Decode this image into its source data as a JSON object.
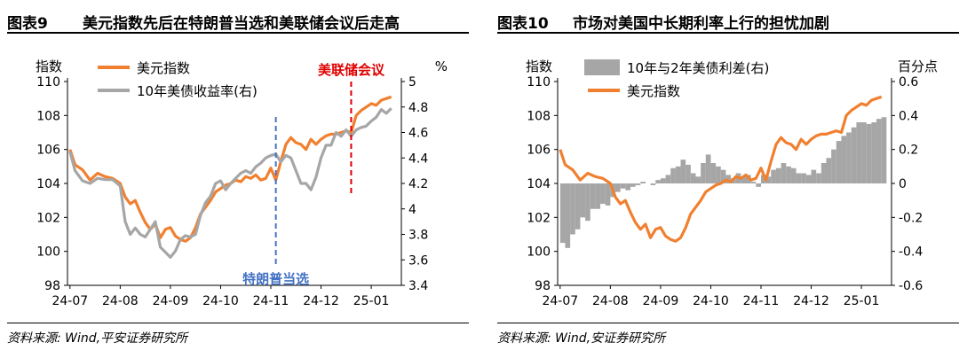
{
  "figures": [
    {
      "number": "图表9",
      "title": "美元指数先后在特朗普当选和美联储会议后走高",
      "source": "资料来源: Wind,平安证券研究所"
    },
    {
      "number": "图表10",
      "title": "市场对美国中长期利率上行的担忧加剧",
      "source": "资料来源: Wind,安证券研究所"
    }
  ],
  "chart_data": [
    {
      "type": "line",
      "x_ticks": [
        "24-07",
        "24-08",
        "24-09",
        "24-10",
        "24-11",
        "24-12",
        "25-01"
      ],
      "y_left": {
        "label": "指数",
        "lim": [
          98,
          110
        ],
        "ticks": [
          98,
          100,
          102,
          104,
          106,
          108,
          110
        ]
      },
      "y_right": {
        "label": "%",
        "lim": [
          3.4,
          5.0
        ],
        "ticks": [
          3.4,
          3.6,
          3.8,
          4.0,
          4.2,
          4.4,
          4.6,
          4.8,
          5.0
        ]
      },
      "legend": [
        "美元指数",
        "10年美债收益率(右)"
      ],
      "legend_position": "top-left",
      "colors": {
        "series1": "#F08030",
        "series2": "#A6A6A6",
        "annotation1": "#4472C4",
        "annotation2": "#E00000"
      },
      "annotations": [
        {
          "label": "特朗普当选",
          "x": 4.1,
          "style": "dashed-vertical",
          "color": "#4472C4"
        },
        {
          "label": "美联储会议",
          "x": 5.6,
          "style": "dashed-vertical",
          "color": "#E00000"
        }
      ],
      "series": [
        {
          "name": "美元指数",
          "axis": "left",
          "x": [
            0,
            0.1,
            0.25,
            0.4,
            0.55,
            0.7,
            0.85,
            1.0,
            1.1,
            1.2,
            1.3,
            1.4,
            1.5,
            1.6,
            1.7,
            1.8,
            1.9,
            2.0,
            2.1,
            2.2,
            2.3,
            2.4,
            2.5,
            2.6,
            2.7,
            2.8,
            2.9,
            3.0,
            3.1,
            3.2,
            3.3,
            3.4,
            3.5,
            3.6,
            3.7,
            3.8,
            3.9,
            4.0,
            4.1,
            4.2,
            4.3,
            4.4,
            4.5,
            4.6,
            4.7,
            4.8,
            4.9,
            5.0,
            5.1,
            5.2,
            5.3,
            5.4,
            5.5,
            5.6,
            5.7,
            5.8,
            5.9,
            6.0,
            6.1,
            6.2,
            6.3,
            6.4
          ],
          "values": [
            106.0,
            105.1,
            104.8,
            104.2,
            104.6,
            104.4,
            104.3,
            104.0,
            103.2,
            102.8,
            103.0,
            102.3,
            101.7,
            101.3,
            101.6,
            100.8,
            101.3,
            101.4,
            100.9,
            100.7,
            100.6,
            100.8,
            101.4,
            102.2,
            102.6,
            103.0,
            103.5,
            103.7,
            103.9,
            104.0,
            104.2,
            104.1,
            104.4,
            104.3,
            104.5,
            104.2,
            104.3,
            104.9,
            104.2,
            105.3,
            106.3,
            106.7,
            106.4,
            106.3,
            106.0,
            106.6,
            106.3,
            106.6,
            106.8,
            106.9,
            106.9,
            107.0,
            107.1,
            107.0,
            108.0,
            108.3,
            108.5,
            108.7,
            108.6,
            108.9,
            109.0,
            109.1
          ]
        },
        {
          "name": "10年美债收益率(右)",
          "axis": "right",
          "x": [
            0,
            0.1,
            0.25,
            0.4,
            0.55,
            0.7,
            0.85,
            1.0,
            1.1,
            1.2,
            1.3,
            1.4,
            1.5,
            1.6,
            1.7,
            1.8,
            1.9,
            2.0,
            2.1,
            2.2,
            2.3,
            2.4,
            2.5,
            2.6,
            2.7,
            2.8,
            2.9,
            3.0,
            3.1,
            3.2,
            3.3,
            3.4,
            3.5,
            3.6,
            3.7,
            3.8,
            3.9,
            4.0,
            4.1,
            4.2,
            4.3,
            4.4,
            4.5,
            4.6,
            4.7,
            4.8,
            4.9,
            5.0,
            5.1,
            5.2,
            5.3,
            5.4,
            5.5,
            5.6,
            5.7,
            5.8,
            5.9,
            6.0,
            6.1,
            6.2,
            6.3,
            6.4
          ],
          "values": [
            4.45,
            4.3,
            4.22,
            4.2,
            4.24,
            4.23,
            4.23,
            4.18,
            3.9,
            3.8,
            3.85,
            3.8,
            3.78,
            3.84,
            3.9,
            3.7,
            3.66,
            3.62,
            3.67,
            3.76,
            3.79,
            3.78,
            3.8,
            3.95,
            4.05,
            4.1,
            4.2,
            4.22,
            4.15,
            4.2,
            4.24,
            4.28,
            4.3,
            4.28,
            4.33,
            4.36,
            4.4,
            4.42,
            4.43,
            4.37,
            4.42,
            4.4,
            4.3,
            4.2,
            4.2,
            4.15,
            4.25,
            4.4,
            4.5,
            4.5,
            4.6,
            4.57,
            4.62,
            4.57,
            4.62,
            4.64,
            4.65,
            4.69,
            4.72,
            4.78,
            4.75,
            4.79
          ]
        }
      ]
    },
    {
      "type": "area",
      "x_ticks": [
        "24-07",
        "24-08",
        "24-09",
        "24-10",
        "24-11",
        "24-12",
        "25-01"
      ],
      "y_left": {
        "label": "指数",
        "lim": [
          98,
          110
        ],
        "ticks": [
          98,
          100,
          102,
          104,
          106,
          108,
          110
        ]
      },
      "y_right": {
        "label": "百分点",
        "lim": [
          -0.6,
          0.6
        ],
        "ticks": [
          -0.6,
          -0.4,
          -0.2,
          0.0,
          0.2,
          0.4,
          0.6
        ]
      },
      "legend": [
        "10年与2年美债利差(右)",
        "美元指数"
      ],
      "legend_position": "top-left",
      "colors": {
        "series1": "#A6A6A6",
        "series2": "#F08030"
      },
      "series": [
        {
          "name": "10年与2年美债利差(右)",
          "axis": "right",
          "type": "area",
          "x": [
            0,
            0.1,
            0.2,
            0.3,
            0.4,
            0.5,
            0.6,
            0.7,
            0.8,
            0.9,
            1.0,
            1.1,
            1.2,
            1.3,
            1.4,
            1.5,
            1.6,
            1.7,
            1.8,
            1.9,
            2.0,
            2.1,
            2.2,
            2.3,
            2.4,
            2.5,
            2.6,
            2.7,
            2.8,
            2.9,
            3.0,
            3.1,
            3.2,
            3.3,
            3.4,
            3.5,
            3.6,
            3.7,
            3.8,
            3.9,
            4.0,
            4.1,
            4.2,
            4.3,
            4.4,
            4.5,
            4.6,
            4.7,
            4.8,
            4.9,
            5.0,
            5.1,
            5.2,
            5.3,
            5.4,
            5.5,
            5.6,
            5.7,
            5.8,
            5.9,
            6.0,
            6.1,
            6.2,
            6.3,
            6.4
          ],
          "values": [
            -0.35,
            -0.38,
            -0.3,
            -0.27,
            -0.2,
            -0.22,
            -0.15,
            -0.15,
            -0.12,
            -0.13,
            -0.08,
            -0.05,
            -0.03,
            -0.04,
            -0.02,
            -0.01,
            0.01,
            0.0,
            -0.01,
            0.02,
            0.03,
            0.05,
            0.09,
            0.1,
            0.14,
            0.11,
            0.06,
            0.04,
            0.12,
            0.17,
            0.12,
            0.1,
            0.08,
            0.05,
            0.03,
            0.06,
            0.04,
            0.05,
            0.01,
            -0.02,
            0.05,
            0.04,
            0.08,
            0.09,
            0.12,
            0.1,
            0.09,
            0.06,
            0.06,
            0.05,
            0.08,
            0.06,
            0.12,
            0.15,
            0.2,
            0.25,
            0.28,
            0.3,
            0.33,
            0.36,
            0.36,
            0.35,
            0.36,
            0.38,
            0.39
          ]
        },
        {
          "name": "美元指数",
          "axis": "left",
          "type": "line",
          "x": [
            0,
            0.1,
            0.25,
            0.4,
            0.55,
            0.7,
            0.85,
            1.0,
            1.1,
            1.2,
            1.3,
            1.4,
            1.5,
            1.6,
            1.7,
            1.8,
            1.9,
            2.0,
            2.1,
            2.2,
            2.3,
            2.4,
            2.5,
            2.6,
            2.7,
            2.8,
            2.9,
            3.0,
            3.1,
            3.2,
            3.3,
            3.4,
            3.5,
            3.6,
            3.7,
            3.8,
            3.9,
            4.0,
            4.1,
            4.2,
            4.3,
            4.4,
            4.5,
            4.6,
            4.7,
            4.8,
            4.9,
            5.0,
            5.1,
            5.2,
            5.3,
            5.4,
            5.5,
            5.6,
            5.7,
            5.8,
            5.9,
            6.0,
            6.1,
            6.2,
            6.3,
            6.4
          ],
          "values": [
            106.0,
            105.1,
            104.8,
            104.2,
            104.6,
            104.4,
            104.3,
            104.0,
            103.2,
            102.8,
            103.0,
            102.3,
            101.7,
            101.3,
            101.6,
            100.8,
            101.3,
            101.4,
            100.9,
            100.7,
            100.6,
            100.8,
            101.4,
            102.2,
            102.6,
            103.0,
            103.5,
            103.7,
            103.9,
            104.0,
            104.2,
            104.1,
            104.4,
            104.3,
            104.5,
            104.2,
            104.3,
            104.9,
            104.2,
            105.3,
            106.3,
            106.7,
            106.4,
            106.3,
            106.0,
            106.6,
            106.3,
            106.6,
            106.8,
            106.9,
            106.9,
            107.0,
            107.1,
            107.0,
            108.0,
            108.3,
            108.5,
            108.7,
            108.6,
            108.9,
            109.0,
            109.1
          ]
        }
      ]
    }
  ]
}
